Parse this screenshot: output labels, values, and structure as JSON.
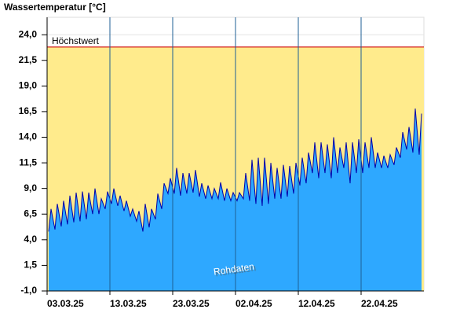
{
  "chart_data": {
    "type": "area",
    "title": "Wassertemperatur [°C]",
    "x": [
      "03.03.25 06:00",
      "03.03.25 15:00",
      "04.03.25 06:00",
      "04.03.25 15:00",
      "05.03.25 06:00",
      "05.03.25 15:00",
      "06.03.25 06:00",
      "06.03.25 15:00",
      "07.03.25 06:00",
      "07.03.25 15:00",
      "08.03.25 06:00",
      "08.03.25 15:00",
      "09.03.25 06:00",
      "09.03.25 15:00",
      "10.03.25 06:00",
      "10.03.25 15:00",
      "11.03.25 06:00",
      "11.03.25 15:00",
      "12.03.25 06:00",
      "12.03.25 15:00",
      "13.03.25 06:00",
      "13.03.25 15:00",
      "14.03.25 06:00",
      "14.03.25 15:00",
      "15.03.25 06:00",
      "15.03.25 15:00",
      "16.03.25 06:00",
      "16.03.25 15:00",
      "17.03.25 06:00",
      "17.03.25 15:00",
      "18.03.25 06:00",
      "18.03.25 15:00",
      "19.03.25 06:00",
      "19.03.25 15:00",
      "20.03.25 06:00",
      "20.03.25 15:00",
      "21.03.25 06:00",
      "21.03.25 15:00",
      "22.03.25 06:00",
      "22.03.25 15:00",
      "23.03.25 06:00",
      "23.03.25 15:00",
      "24.03.25 06:00",
      "24.03.25 15:00",
      "25.03.25 06:00",
      "25.03.25 15:00",
      "26.03.25 06:00",
      "26.03.25 15:00",
      "27.03.25 06:00",
      "27.03.25 15:00",
      "28.03.25 06:00",
      "28.03.25 15:00",
      "29.03.25 06:00",
      "29.03.25 15:00",
      "30.03.25 06:00",
      "30.03.25 15:00",
      "31.03.25 06:00",
      "31.03.25 15:00",
      "01.04.25 06:00",
      "01.04.25 15:00",
      "02.04.25 06:00",
      "02.04.25 15:00",
      "03.04.25 06:00",
      "03.04.25 15:00",
      "04.04.25 06:00",
      "04.04.25 15:00",
      "05.04.25 06:00",
      "05.04.25 15:00",
      "06.04.25 06:00",
      "06.04.25 15:00",
      "07.04.25 06:00",
      "07.04.25 15:00",
      "08.04.25 06:00",
      "08.04.25 15:00",
      "09.04.25 06:00",
      "09.04.25 15:00",
      "10.04.25 06:00",
      "10.04.25 15:00",
      "11.04.25 06:00",
      "11.04.25 15:00",
      "12.04.25 06:00",
      "12.04.25 15:00",
      "13.04.25 06:00",
      "13.04.25 15:00",
      "14.04.25 06:00",
      "14.04.25 15:00",
      "15.04.25 06:00",
      "15.04.25 15:00",
      "16.04.25 06:00",
      "16.04.25 15:00",
      "17.04.25 06:00",
      "17.04.25 15:00",
      "18.04.25 06:00",
      "18.04.25 15:00",
      "19.04.25 06:00",
      "19.04.25 15:00",
      "20.04.25 06:00",
      "20.04.25 15:00",
      "21.04.25 06:00",
      "21.04.25 15:00",
      "22.04.25 06:00",
      "22.04.25 15:00",
      "23.04.25 06:00",
      "23.04.25 15:00",
      "24.04.25 06:00",
      "24.04.25 15:00",
      "25.04.25 06:00",
      "25.04.25 15:00",
      "26.04.25 06:00",
      "26.04.25 15:00",
      "27.04.25 06:00",
      "27.04.25 15:00",
      "28.04.25 06:00",
      "28.04.25 15:00",
      "29.04.25 06:00",
      "29.04.25 15:00",
      "30.04.25 06:00",
      "30.04.25 15:00",
      "01.05.25 06:00",
      "01.05.25 15:00"
    ],
    "series": [
      {
        "color": "#2ea8ff",
        "line_color": "#0000aa",
        "values": [
          4.8,
          7.0,
          5.0,
          7.5,
          5.3,
          7.8,
          5.5,
          8.3,
          5.7,
          8.6,
          5.8,
          8.7,
          6.0,
          8.6,
          6.5,
          9.0,
          6.5,
          8.0,
          7.0,
          8.7,
          7.5,
          9.0,
          7.3,
          8.3,
          6.8,
          7.8,
          6.3,
          7.0,
          5.8,
          6.8,
          4.8,
          7.5,
          5.2,
          7.0,
          6.0,
          8.5,
          7.0,
          9.5,
          8.5,
          10.0,
          8.5,
          11.0,
          8.3,
          10.5,
          8.5,
          10.5,
          8.6,
          10.8,
          8.2,
          9.5,
          8.0,
          9.3,
          8.0,
          9.0,
          8.0,
          9.6,
          7.8,
          9.0,
          7.8,
          8.6,
          7.8,
          8.6,
          8.0,
          10.5,
          7.8,
          11.8,
          7.5,
          12.0,
          7.3,
          12.0,
          7.5,
          11.5,
          8.0,
          11.0,
          8.0,
          11.3,
          8.2,
          11.2,
          8.5,
          11.5,
          9.3,
          12.0,
          9.5,
          12.5,
          10.5,
          13.5,
          10.0,
          13.5,
          10.5,
          13.3,
          10.0,
          14.0,
          10.5,
          13.0,
          11.0,
          13.5,
          9.5,
          13.5,
          10.5,
          13.8,
          10.5,
          13.5,
          11.0,
          14.0,
          11.0,
          12.5,
          11.0,
          12.2,
          11.0,
          12.3,
          11.3,
          13.0,
          12.0,
          14.5,
          12.8,
          15.0,
          12.5,
          16.8,
          12.3,
          16.3
        ]
      }
    ],
    "xlim": [
      "03.03.25 00:00",
      "02.05.25 00:00"
    ],
    "xticks": [
      "03.03.25",
      "13.03.25",
      "23.03.25",
      "02.04.25",
      "12.04.25",
      "22.04.25"
    ],
    "ylim": [
      -1,
      25.7
    ],
    "yticks": [
      {
        "value": -1,
        "label": "-1,0"
      },
      {
        "value": 1.5,
        "label": "1,5"
      },
      {
        "value": 4,
        "label": "4,0"
      },
      {
        "value": 6.5,
        "label": "6,5"
      },
      {
        "value": 9,
        "label": "9,0"
      },
      {
        "value": 11.5,
        "label": "11,5"
      },
      {
        "value": 14,
        "label": "14,0"
      },
      {
        "value": 16.5,
        "label": "16,5"
      },
      {
        "value": 19,
        "label": "19,0"
      },
      {
        "value": 21.5,
        "label": "21,5"
      },
      {
        "value": 24,
        "label": "24,0"
      }
    ],
    "threshold": {
      "label": "Höchstwert",
      "value": 22.8,
      "color": "#cc0000",
      "band_color": "#ffeb8c"
    },
    "watermark": "Rohdaten",
    "grid": true
  }
}
